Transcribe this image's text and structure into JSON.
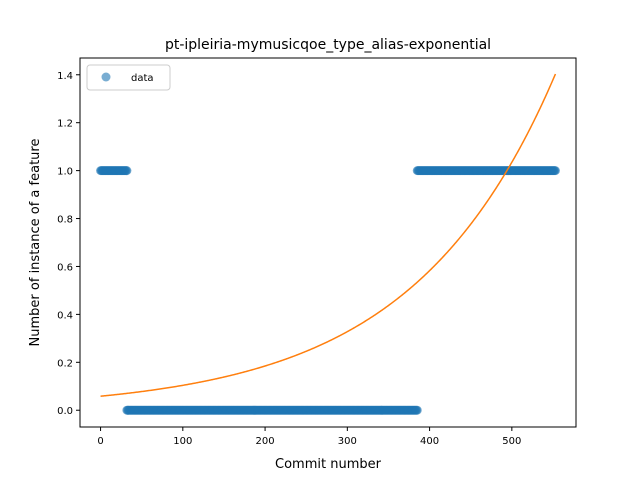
{
  "chart_data": {
    "type": "scatter",
    "title": "pt-ipleiria-mymusicqoe_type_alias-exponential",
    "xlabel": "Commit number",
    "ylabel": "Number of instance of a feature",
    "xlim": [
      -25,
      578
    ],
    "ylim": [
      -0.07,
      1.47
    ],
    "xticks": [
      0,
      100,
      200,
      300,
      400,
      500
    ],
    "yticks": [
      0.0,
      0.2,
      0.4,
      0.6,
      0.8,
      1.0,
      1.2,
      1.4
    ],
    "ytick_labels": [
      "0.0",
      "0.2",
      "0.4",
      "0.6",
      "0.8",
      "1.0",
      "1.2",
      "1.4"
    ],
    "grid": false,
    "legend_position": "top-left",
    "series": [
      {
        "name": "data",
        "kind": "scatter",
        "color": "#1f77b4",
        "segments": [
          {
            "x_start": 0,
            "x_end": 32,
            "y": 1
          },
          {
            "x_start": 32,
            "x_end": 385,
            "y": 0
          },
          {
            "x_start": 385,
            "x_end": 553,
            "y": 1
          }
        ]
      },
      {
        "kind": "line",
        "color": "#ff7f0e",
        "model": "exponential",
        "a": 0.0585,
        "b": 0.005746,
        "x_start": 0,
        "x_end": 553
      }
    ]
  }
}
